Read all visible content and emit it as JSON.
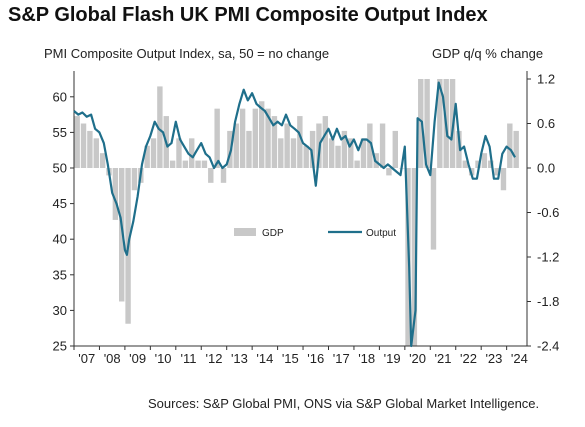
{
  "title": "S&P Global Flash UK PMI Composite Output Index",
  "left_axis_title": "PMI Composite Output Index, sa, 50 = no change",
  "right_axis_title": "GDP q/q % change",
  "source": "Sources: S&P Global PMI, ONS via S&P Global Market Intelligence.",
  "colors": {
    "gdp_bar": "#c8c8c8",
    "output_line": "#1f6f8b",
    "axis": "#333333"
  },
  "chart_data": {
    "type": "bar+line",
    "x_ticks": [
      "'07",
      "'08",
      "'09",
      "'10",
      "'11",
      "'12",
      "'13",
      "'14",
      "'15",
      "'16",
      "'17",
      "'18",
      "'19",
      "'20",
      "'21",
      "'22",
      "'23",
      "'24"
    ],
    "left_axis": {
      "ticks": [
        25,
        30,
        35,
        40,
        45,
        50,
        55,
        60
      ],
      "range": [
        25,
        62.5
      ]
    },
    "right_axis": {
      "ticks": [
        "1.2",
        "0.6",
        "0.0",
        "-0.6",
        "-1.2",
        "-1.8",
        "-2.4"
      ],
      "range": [
        -2.4,
        1.2
      ]
    },
    "legend": {
      "placement": "center",
      "entries": [
        "GDP",
        "Output"
      ]
    },
    "series": [
      {
        "name": "GDP",
        "kind": "bar",
        "axis": "right",
        "points": [
          [
            2007.0,
            0.7
          ],
          [
            2007.25,
            0.6
          ],
          [
            2007.5,
            0.5
          ],
          [
            2007.75,
            0.4
          ],
          [
            2008.0,
            0.2
          ],
          [
            2008.25,
            -0.1
          ],
          [
            2008.5,
            -0.7
          ],
          [
            2008.75,
            -1.8
          ],
          [
            2009.0,
            -2.1
          ],
          [
            2009.25,
            -0.3
          ],
          [
            2009.5,
            -0.2
          ],
          [
            2009.75,
            0.3
          ],
          [
            2010.0,
            0.4
          ],
          [
            2010.25,
            1.1
          ],
          [
            2010.5,
            0.7
          ],
          [
            2010.75,
            0.1
          ],
          [
            2011.0,
            0.4
          ],
          [
            2011.25,
            0.1
          ],
          [
            2011.5,
            0.4
          ],
          [
            2011.75,
            0.1
          ],
          [
            2012.0,
            0.1
          ],
          [
            2012.25,
            -0.2
          ],
          [
            2012.5,
            0.8
          ],
          [
            2012.75,
            -0.2
          ],
          [
            2013.0,
            0.5
          ],
          [
            2013.25,
            0.6
          ],
          [
            2013.5,
            0.8
          ],
          [
            2013.75,
            0.5
          ],
          [
            2014.0,
            0.8
          ],
          [
            2014.25,
            0.9
          ],
          [
            2014.5,
            0.8
          ],
          [
            2014.75,
            0.7
          ],
          [
            2015.0,
            0.4
          ],
          [
            2015.25,
            0.6
          ],
          [
            2015.5,
            0.4
          ],
          [
            2015.75,
            0.7
          ],
          [
            2016.0,
            0.3
          ],
          [
            2016.25,
            0.5
          ],
          [
            2016.5,
            0.6
          ],
          [
            2016.75,
            0.7
          ],
          [
            2017.0,
            0.4
          ],
          [
            2017.25,
            0.3
          ],
          [
            2017.5,
            0.5
          ],
          [
            2017.75,
            0.4
          ],
          [
            2018.0,
            0.1
          ],
          [
            2018.25,
            0.4
          ],
          [
            2018.5,
            0.6
          ],
          [
            2018.75,
            0.2
          ],
          [
            2019.0,
            0.6
          ],
          [
            2019.25,
            -0.1
          ],
          [
            2019.5,
            0.5
          ],
          [
            2019.75,
            0.0
          ],
          [
            2020.0,
            -2.4
          ],
          [
            2020.25,
            -2.4
          ],
          [
            2020.5,
            1.2
          ],
          [
            2020.75,
            1.2
          ],
          [
            2021.0,
            -1.1
          ],
          [
            2021.25,
            1.2
          ],
          [
            2021.5,
            1.2
          ],
          [
            2021.75,
            1.2
          ],
          [
            2022.0,
            0.5
          ],
          [
            2022.25,
            0.1
          ],
          [
            2022.5,
            -0.1
          ],
          [
            2022.75,
            0.1
          ],
          [
            2023.0,
            0.2
          ],
          [
            2023.25,
            0.1
          ],
          [
            2023.5,
            -0.1
          ],
          [
            2023.75,
            -0.3
          ],
          [
            2024.0,
            0.6
          ],
          [
            2024.25,
            0.5
          ]
        ]
      },
      {
        "name": "Output",
        "kind": "line",
        "axis": "left",
        "points": [
          [
            2007.0,
            58
          ],
          [
            2007.17,
            57.5
          ],
          [
            2007.33,
            57.8
          ],
          [
            2007.5,
            57.2
          ],
          [
            2007.67,
            57.5
          ],
          [
            2007.83,
            55.5
          ],
          [
            2008.0,
            55.0
          ],
          [
            2008.17,
            53.5
          ],
          [
            2008.33,
            50.5
          ],
          [
            2008.5,
            46.5
          ],
          [
            2008.67,
            45.0
          ],
          [
            2008.83,
            43.0
          ],
          [
            2009.0,
            38.5
          ],
          [
            2009.08,
            37.8
          ],
          [
            2009.17,
            40.0
          ],
          [
            2009.33,
            42.5
          ],
          [
            2009.5,
            46.0
          ],
          [
            2009.67,
            50.5
          ],
          [
            2009.83,
            53.0
          ],
          [
            2010.0,
            54.5
          ],
          [
            2010.17,
            56.5
          ],
          [
            2010.33,
            55.5
          ],
          [
            2010.5,
            55.0
          ],
          [
            2010.67,
            53.0
          ],
          [
            2010.83,
            53.5
          ],
          [
            2011.0,
            56.5
          ],
          [
            2011.17,
            54.0
          ],
          [
            2011.33,
            53.0
          ],
          [
            2011.5,
            52.0
          ],
          [
            2011.67,
            51.5
          ],
          [
            2011.83,
            52.5
          ],
          [
            2012.0,
            53.5
          ],
          [
            2012.17,
            52.0
          ],
          [
            2012.33,
            51.5
          ],
          [
            2012.5,
            50.0
          ],
          [
            2012.67,
            51.0
          ],
          [
            2012.83,
            50.0
          ],
          [
            2013.0,
            50.5
          ],
          [
            2013.17,
            52.5
          ],
          [
            2013.33,
            56.5
          ],
          [
            2013.5,
            59.0
          ],
          [
            2013.67,
            61.0
          ],
          [
            2013.83,
            59.5
          ],
          [
            2014.0,
            60.5
          ],
          [
            2014.17,
            59.0
          ],
          [
            2014.33,
            58.5
          ],
          [
            2014.5,
            58.0
          ],
          [
            2014.67,
            57.0
          ],
          [
            2014.83,
            56.0
          ],
          [
            2015.0,
            56.5
          ],
          [
            2015.17,
            56.0
          ],
          [
            2015.33,
            57.5
          ],
          [
            2015.5,
            56.0
          ],
          [
            2015.67,
            55.5
          ],
          [
            2015.83,
            55.0
          ],
          [
            2016.0,
            53.5
          ],
          [
            2016.17,
            53.0
          ],
          [
            2016.33,
            52.5
          ],
          [
            2016.5,
            47.5
          ],
          [
            2016.67,
            53.5
          ],
          [
            2016.83,
            54.5
          ],
          [
            2017.0,
            55.5
          ],
          [
            2017.17,
            54.0
          ],
          [
            2017.33,
            55.5
          ],
          [
            2017.5,
            54.0
          ],
          [
            2017.67,
            54.5
          ],
          [
            2017.83,
            53.0
          ],
          [
            2018.0,
            54.0
          ],
          [
            2018.17,
            52.5
          ],
          [
            2018.33,
            54.0
          ],
          [
            2018.5,
            54.0
          ],
          [
            2018.67,
            53.5
          ],
          [
            2018.83,
            51.0
          ],
          [
            2019.0,
            50.5
          ],
          [
            2019.17,
            50.0
          ],
          [
            2019.33,
            50.5
          ],
          [
            2019.5,
            50.0
          ],
          [
            2019.67,
            49.5
          ],
          [
            2019.83,
            49.0
          ],
          [
            2020.0,
            53.0
          ],
          [
            2020.17,
            36.0
          ],
          [
            2020.25,
            13.8
          ],
          [
            2020.42,
            30.0
          ],
          [
            2020.5,
            57.0
          ],
          [
            2020.67,
            56.5
          ],
          [
            2020.83,
            50.5
          ],
          [
            2021.0,
            49.0
          ],
          [
            2021.17,
            56.5
          ],
          [
            2021.33,
            62.0
          ],
          [
            2021.5,
            60.0
          ],
          [
            2021.67,
            54.5
          ],
          [
            2021.83,
            54.0
          ],
          [
            2022.0,
            59.0
          ],
          [
            2022.17,
            52.5
          ],
          [
            2022.33,
            53.0
          ],
          [
            2022.5,
            50.5
          ],
          [
            2022.67,
            48.5
          ],
          [
            2022.83,
            48.5
          ],
          [
            2023.0,
            52.0
          ],
          [
            2023.17,
            54.5
          ],
          [
            2023.33,
            53.0
          ],
          [
            2023.5,
            48.5
          ],
          [
            2023.67,
            48.5
          ],
          [
            2023.83,
            52.0
          ],
          [
            2024.0,
            53.0
          ],
          [
            2024.17,
            52.5
          ],
          [
            2024.33,
            51.5
          ]
        ]
      }
    ]
  }
}
